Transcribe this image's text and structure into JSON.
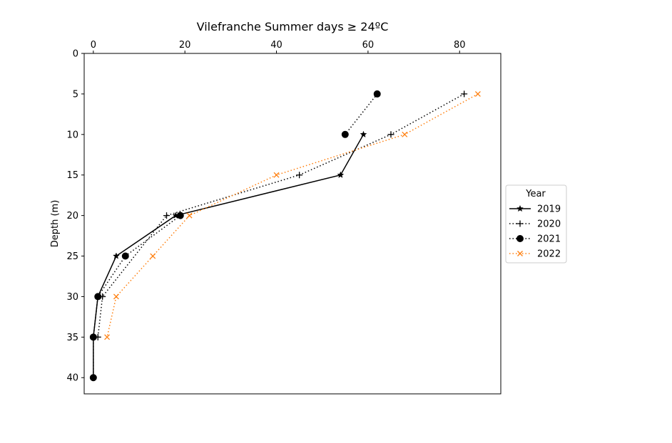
{
  "chart_data": {
    "type": "line",
    "title": "Vilefranche Summer days ≥ 24ºC",
    "xlabel": "",
    "ylabel": "Depth (m)",
    "xlim": [
      -2,
      89
    ],
    "ylim": [
      42,
      0
    ],
    "y_inverted": true,
    "x_axis_position": "top",
    "x_ticks": [
      0,
      20,
      40,
      60,
      80
    ],
    "y_ticks": [
      0,
      5,
      10,
      15,
      20,
      25,
      30,
      35,
      40
    ],
    "grid": false,
    "legend": {
      "title": "Year",
      "placement": "outside-right"
    },
    "series": [
      {
        "name": "2019",
        "color": "#000000",
        "linestyle": "solid",
        "marker": "star",
        "x": [
          59,
          54,
          18,
          5,
          1,
          0,
          0
        ],
        "y": [
          10,
          15,
          20,
          25,
          30,
          35,
          40
        ]
      },
      {
        "name": "2020",
        "color": "#000000",
        "linestyle": "dotted",
        "marker": "plus",
        "x": [
          81,
          65,
          45,
          16,
          2,
          1
        ],
        "y": [
          5,
          10,
          15,
          20,
          30,
          35
        ]
      },
      {
        "name": "2021",
        "color": "#000000",
        "linestyle": "dotted",
        "marker": "circle",
        "x": [
          62,
          55
        ],
        "y": [
          5,
          10
        ],
        "x2": [
          19,
          7,
          1,
          0,
          0
        ],
        "y2": [
          20,
          25,
          30,
          35,
          40
        ]
      },
      {
        "name": "2022",
        "color": "#ff7f0e",
        "linestyle": "dotted",
        "marker": "x",
        "x": [
          84,
          68,
          40,
          21,
          13,
          5,
          3
        ],
        "y": [
          5,
          10,
          15,
          20,
          25,
          30,
          35
        ]
      }
    ]
  }
}
